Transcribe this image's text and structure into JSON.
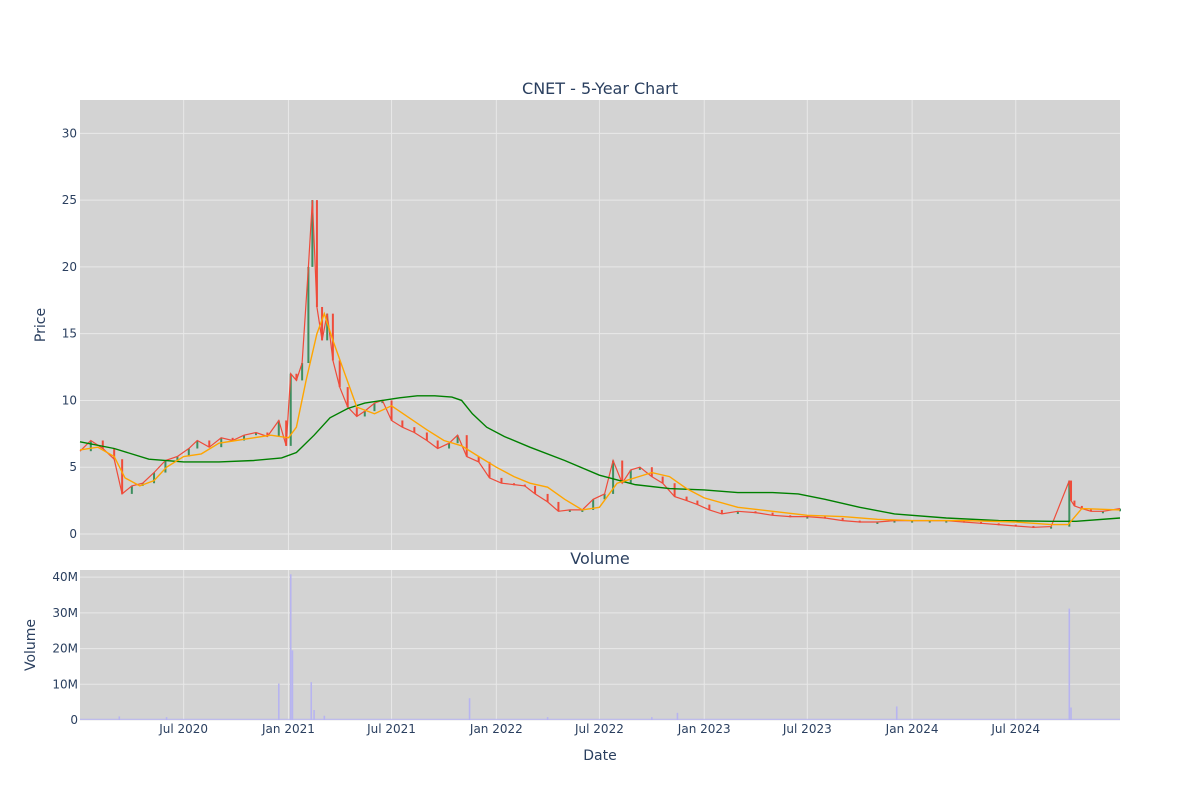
{
  "title": "CNET - 5-Year Chart",
  "volume_title": "Volume",
  "colors": {
    "plot_bg": "#d3d3d3",
    "grid": "#e8e8e8",
    "up": "#3d8f5f",
    "down": "#ef4b3a",
    "ma_short": "#ffa500",
    "ma_long": "#008000",
    "volume_bar": "#b7b4f0",
    "text": "#2a3f5f"
  },
  "chart_data": [
    {
      "type": "line",
      "title": "CNET - 5-Year Chart",
      "ylabel": "Price",
      "ylim": [
        -1.2,
        32.5
      ],
      "yticks": [
        0,
        5,
        10,
        15,
        20,
        25,
        30
      ],
      "xlim": [
        "2020-01-01",
        "2024-12-31"
      ],
      "grid": true,
      "series": [
        {
          "name": "",
          "kind": "candlestick-close",
          "x": [
            "2020-01-01",
            "2020-01-20",
            "2020-02-10",
            "2020-03-01",
            "2020-03-15",
            "2020-04-01",
            "2020-04-20",
            "2020-05-10",
            "2020-05-30",
            "2020-06-20",
            "2020-07-10",
            "2020-07-25",
            "2020-08-15",
            "2020-09-05",
            "2020-09-25",
            "2020-10-15",
            "2020-11-05",
            "2020-11-25",
            "2020-12-15",
            "2020-12-28",
            "2021-01-05",
            "2021-01-15",
            "2021-01-25",
            "2021-02-05",
            "2021-02-12",
            "2021-02-20",
            "2021-03-01",
            "2021-03-10",
            "2021-03-20",
            "2021-04-01",
            "2021-04-15",
            "2021-05-01",
            "2021-05-15",
            "2021-06-01",
            "2021-06-15",
            "2021-07-01",
            "2021-07-20",
            "2021-08-10",
            "2021-09-01",
            "2021-09-20",
            "2021-10-10",
            "2021-10-25",
            "2021-11-10",
            "2021-12-01",
            "2021-12-20",
            "2022-01-10",
            "2022-02-01",
            "2022-02-20",
            "2022-03-10",
            "2022-04-01",
            "2022-04-20",
            "2022-05-10",
            "2022-06-01",
            "2022-06-20",
            "2022-07-10",
            "2022-07-25",
            "2022-08-10",
            "2022-08-25",
            "2022-09-10",
            "2022-10-01",
            "2022-10-20",
            "2022-11-10",
            "2022-12-01",
            "2022-12-20",
            "2023-01-10",
            "2023-02-01",
            "2023-03-01",
            "2023-04-01",
            "2023-05-01",
            "2023-06-01",
            "2023-07-01",
            "2023-08-01",
            "2023-09-01",
            "2023-10-01",
            "2023-11-01",
            "2023-12-01",
            "2024-01-01",
            "2024-02-01",
            "2024-03-01",
            "2024-04-01",
            "2024-05-01",
            "2024-06-01",
            "2024-07-01",
            "2024-08-01",
            "2024-09-01",
            "2024-10-03",
            "2024-10-06",
            "2024-10-12",
            "2024-10-25",
            "2024-11-10",
            "2024-12-01",
            "2024-12-31"
          ],
          "y": [
            6.2,
            7.0,
            6.4,
            5.6,
            3.0,
            3.6,
            3.8,
            4.6,
            5.5,
            5.8,
            6.4,
            7.0,
            6.5,
            7.2,
            7.0,
            7.4,
            7.6,
            7.3,
            8.5,
            6.6,
            12.0,
            11.5,
            12.8,
            20.0,
            25.0,
            17.0,
            14.5,
            16.5,
            13.0,
            11.0,
            9.5,
            8.8,
            9.2,
            9.8,
            10.0,
            8.5,
            8.0,
            7.6,
            7.0,
            6.4,
            6.8,
            7.4,
            5.8,
            5.4,
            4.2,
            3.8,
            3.7,
            3.6,
            3.0,
            2.4,
            1.7,
            1.8,
            1.8,
            2.6,
            3.0,
            5.5,
            3.8,
            4.8,
            5.0,
            4.3,
            3.8,
            2.8,
            2.5,
            2.2,
            1.8,
            1.5,
            1.7,
            1.6,
            1.4,
            1.3,
            1.3,
            1.2,
            1.0,
            0.9,
            0.9,
            1.0,
            1.0,
            1.0,
            1.0,
            0.9,
            0.8,
            0.7,
            0.6,
            0.5,
            0.55,
            4.0,
            2.5,
            2.1,
            1.9,
            1.7,
            1.7,
            1.9
          ]
        },
        {
          "name": "",
          "kind": "moving-average-short",
          "x": [
            "2020-01-01",
            "2020-02-01",
            "2020-03-01",
            "2020-03-20",
            "2020-04-15",
            "2020-05-10",
            "2020-06-01",
            "2020-07-01",
            "2020-08-01",
            "2020-09-01",
            "2020-10-01",
            "2020-11-01",
            "2020-12-01",
            "2021-01-01",
            "2021-01-15",
            "2021-02-01",
            "2021-02-20",
            "2021-03-05",
            "2021-03-20",
            "2021-04-10",
            "2021-05-01",
            "2021-06-01",
            "2021-07-01",
            "2021-08-01",
            "2021-09-01",
            "2021-10-01",
            "2021-11-01",
            "2021-12-01",
            "2022-01-01",
            "2022-02-01",
            "2022-03-01",
            "2022-04-01",
            "2022-05-01",
            "2022-06-01",
            "2022-07-01",
            "2022-08-01",
            "2022-09-01",
            "2022-10-01",
            "2022-11-01",
            "2022-12-01",
            "2023-01-01",
            "2023-03-01",
            "2023-05-01",
            "2023-07-01",
            "2023-09-01",
            "2023-11-01",
            "2024-01-01",
            "2024-04-01",
            "2024-07-01",
            "2024-09-01",
            "2024-10-01",
            "2024-10-25",
            "2024-12-31"
          ],
          "y": [
            6.3,
            6.5,
            5.8,
            4.2,
            3.6,
            4.0,
            5.0,
            5.8,
            6.0,
            6.8,
            7.0,
            7.2,
            7.4,
            7.2,
            8.0,
            11.5,
            15.0,
            16.5,
            14.5,
            12.0,
            9.5,
            9.0,
            9.6,
            8.7,
            7.8,
            7.0,
            6.6,
            5.8,
            5.0,
            4.3,
            3.8,
            3.5,
            2.6,
            1.8,
            2.0,
            3.8,
            4.2,
            4.6,
            4.3,
            3.4,
            2.7,
            2.0,
            1.7,
            1.4,
            1.3,
            1.1,
            1.0,
            1.0,
            0.9,
            0.7,
            0.7,
            1.9,
            1.8
          ]
        },
        {
          "name": "",
          "kind": "moving-average-long",
          "x": [
            "2020-01-01",
            "2020-03-01",
            "2020-05-01",
            "2020-07-01",
            "2020-09-01",
            "2020-11-01",
            "2020-12-20",
            "2021-01-15",
            "2021-02-15",
            "2021-03-15",
            "2021-04-15",
            "2021-05-15",
            "2021-06-15",
            "2021-07-15",
            "2021-08-15",
            "2021-09-15",
            "2021-10-15",
            "2021-11-01",
            "2021-11-20",
            "2021-12-15",
            "2022-01-15",
            "2022-03-01",
            "2022-05-01",
            "2022-07-01",
            "2022-09-01",
            "2022-11-01",
            "2023-01-01",
            "2023-03-01",
            "2023-05-01",
            "2023-06-15",
            "2023-08-01",
            "2023-10-01",
            "2023-12-01",
            "2024-03-01",
            "2024-06-01",
            "2024-09-01",
            "2024-10-15",
            "2024-12-31"
          ],
          "y": [
            6.9,
            6.4,
            5.6,
            5.4,
            5.4,
            5.5,
            5.7,
            6.1,
            7.4,
            8.7,
            9.4,
            9.8,
            10.0,
            10.2,
            10.35,
            10.35,
            10.25,
            10.0,
            9.0,
            8.0,
            7.3,
            6.5,
            5.5,
            4.4,
            3.7,
            3.4,
            3.3,
            3.1,
            3.1,
            3.0,
            2.6,
            2.0,
            1.5,
            1.2,
            1.0,
            0.95,
            0.95,
            1.2
          ]
        }
      ]
    },
    {
      "type": "bar",
      "title": "Volume",
      "xlabel": "Date",
      "ylabel": "Volume",
      "ylim": [
        0,
        42000000
      ],
      "yticks": [
        0,
        10000000,
        20000000,
        30000000,
        40000000
      ],
      "ytick_labels": [
        "0",
        "10M",
        "20M",
        "30M",
        "40M"
      ],
      "xtick_labels": [
        "Jul 2020",
        "Jan 2021",
        "Jul 2021",
        "Jan 2022",
        "Jul 2022",
        "Jan 2023",
        "Jul 2023",
        "Jan 2024",
        "Jul 2024"
      ],
      "xtick_dates": [
        "2020-07-01",
        "2021-01-01",
        "2021-07-01",
        "2022-01-01",
        "2022-07-01",
        "2023-01-01",
        "2023-07-01",
        "2024-01-01",
        "2024-07-01"
      ],
      "x": [
        "2020-03-10",
        "2020-06-01",
        "2020-12-15",
        "2021-01-05",
        "2021-01-08",
        "2021-02-10",
        "2021-02-15",
        "2021-03-05",
        "2021-11-15",
        "2022-04-01",
        "2022-10-01",
        "2022-11-15",
        "2023-12-05",
        "2024-10-03",
        "2024-10-06"
      ],
      "values": [
        1000000,
        800000,
        10200000,
        40800000,
        19500000,
        10600000,
        2800000,
        1200000,
        6100000,
        800000,
        800000,
        2000000,
        3800000,
        31200000,
        3500000
      ],
      "baseline_volume": 350000
    }
  ]
}
